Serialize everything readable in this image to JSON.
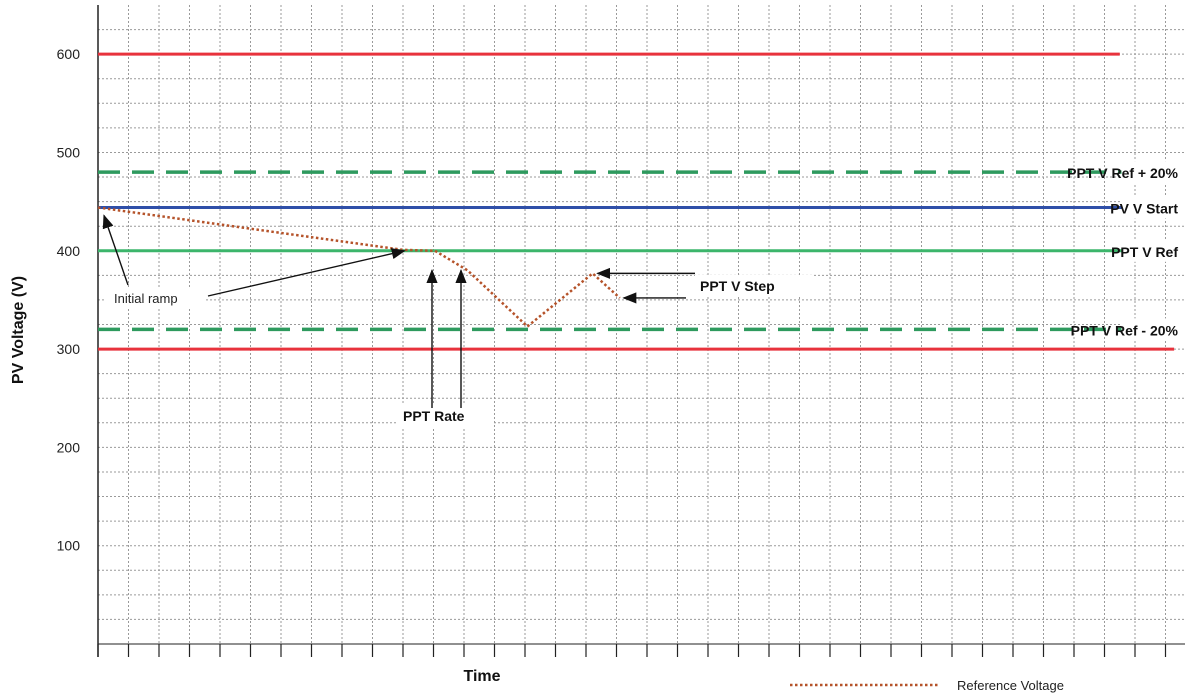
{
  "chart_data": {
    "type": "line",
    "title": "",
    "xlabel": "Time",
    "ylabel": "PV Voltage (V)",
    "ylim": [
      0,
      650
    ],
    "xlim": [
      0,
      100
    ],
    "y_ticks": [
      100,
      200,
      300,
      400,
      500,
      600
    ],
    "grid": true,
    "reference_lines": [
      {
        "label": "",
        "y": 600,
        "style": "solid",
        "color": "#e8323c",
        "x_end": 94
      },
      {
        "label": "PPT V Ref + 20%",
        "y": 480,
        "style": "dashed",
        "color": "#2e9a5e",
        "x_end": 96
      },
      {
        "label": "PV V Start",
        "y": 444,
        "style": "solid",
        "color": "#2f4fa8",
        "x_end": 96
      },
      {
        "label": "PPT V Ref",
        "y": 400,
        "style": "solid",
        "color": "#3cb56b",
        "x_end": 96
      },
      {
        "label": "PPT V Ref - 20%",
        "y": 320,
        "style": "dashed",
        "color": "#2e9a5e",
        "x_end": 96
      },
      {
        "label": "",
        "y": 300,
        "style": "solid",
        "color": "#e8323c",
        "x_end": 99
      }
    ],
    "series": [
      {
        "name": "Reference Voltage",
        "style": "dotted",
        "color": "#b5532a",
        "x": [
          0,
          28,
          31,
          34,
          39.5,
          45.5,
          48
        ],
        "y": [
          444,
          401,
          400,
          380,
          323,
          377,
          352
        ]
      }
    ],
    "annotations": [
      {
        "text": "Initial ramp"
      },
      {
        "text": "PPT Rate"
      },
      {
        "text": "PPT V Step"
      }
    ],
    "legend_position": "bottom-right"
  }
}
